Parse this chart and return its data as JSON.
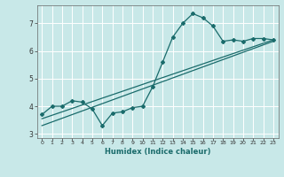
{
  "title": "",
  "xlabel": "Humidex (Indice chaleur)",
  "bg_color": "#c8e8e8",
  "grid_color": "#ffffff",
  "line_color": "#1a6b6b",
  "x_data": [
    0,
    1,
    2,
    3,
    4,
    5,
    6,
    7,
    8,
    9,
    10,
    11,
    12,
    13,
    14,
    15,
    16,
    17,
    18,
    19,
    20,
    21,
    22,
    23
  ],
  "y_curve": [
    3.7,
    4.0,
    4.0,
    4.2,
    4.15,
    3.9,
    3.3,
    3.75,
    3.8,
    3.95,
    4.0,
    4.7,
    5.6,
    6.5,
    7.0,
    7.35,
    7.2,
    6.9,
    6.35,
    6.4,
    6.35,
    6.45,
    6.45,
    6.4
  ],
  "trend1_x": [
    0,
    23
  ],
  "trend1_y": [
    3.55,
    6.4
  ],
  "trend2_x": [
    0,
    23
  ],
  "trend2_y": [
    3.3,
    6.35
  ],
  "ylim": [
    2.85,
    7.65
  ],
  "xlim": [
    -0.5,
    23.5
  ],
  "yticks": [
    3,
    4,
    5,
    6,
    7
  ],
  "xticks": [
    0,
    1,
    2,
    3,
    4,
    5,
    6,
    7,
    8,
    9,
    10,
    11,
    12,
    13,
    14,
    15,
    16,
    17,
    18,
    19,
    20,
    21,
    22,
    23
  ]
}
